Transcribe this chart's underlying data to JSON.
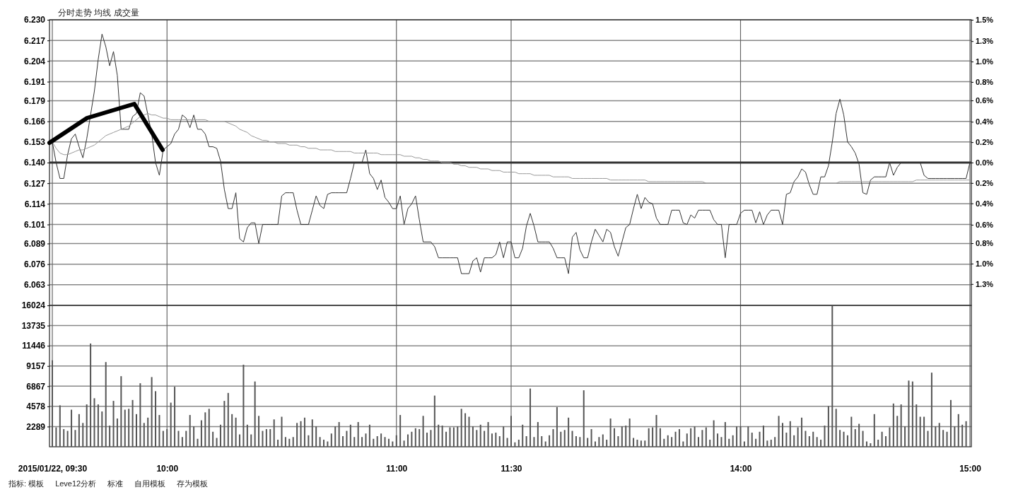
{
  "chart_data": [
    {
      "type": "line",
      "title": "分时走势 均线 成交量",
      "tick_labels": "y",
      "categories": [
        null,
        null,
        null,
        null,
        null,
        null,
        null,
        null,
        null,
        null,
        null,
        null,
        null,
        null,
        null,
        null,
        null,
        null,
        null,
        null,
        null,
        null,
        null,
        null,
        null,
        null,
        null,
        null,
        null,
        null,
        null,
        null,
        null,
        null,
        null,
        null,
        null,
        null,
        null,
        null,
        null,
        null,
        null,
        null,
        null,
        null,
        null,
        null,
        null,
        null,
        null,
        null,
        null,
        null,
        null,
        null,
        null,
        null,
        null,
        null,
        null,
        null,
        null,
        null,
        null,
        null,
        null,
        null,
        null,
        null,
        null,
        null,
        null,
        null,
        null,
        null,
        null,
        null,
        null,
        null,
        null,
        null,
        null,
        null,
        null,
        null,
        null,
        null,
        null,
        null,
        null,
        null,
        null,
        null,
        null,
        null,
        null,
        null,
        null,
        null,
        null,
        null,
        null,
        null,
        null,
        null,
        null,
        null,
        null,
        null,
        null,
        null,
        null,
        null,
        null,
        null,
        null,
        null,
        null,
        null,
        null,
        null,
        null,
        null,
        null,
        null,
        null,
        null,
        null,
        null,
        null,
        null,
        null,
        null,
        null,
        null,
        null,
        null,
        null,
        null,
        null,
        null,
        null,
        null,
        null,
        null,
        null,
        null,
        null,
        null,
        null,
        null,
        null,
        null,
        null,
        null,
        null,
        null,
        null,
        null,
        null,
        null,
        null,
        null,
        null,
        null,
        null,
        null,
        null,
        null,
        null,
        null,
        null,
        null,
        null,
        null,
        null,
        null,
        null,
        null,
        null,
        null,
        null,
        null,
        null,
        null,
        null,
        null,
        null,
        null,
        null,
        null,
        null,
        null,
        null,
        null,
        null,
        null,
        null,
        null,
        null,
        null,
        null,
        null,
        null,
        null,
        null,
        null,
        null,
        null,
        null,
        null,
        null,
        null,
        null,
        null,
        null,
        null,
        null,
        null,
        null,
        null,
        null,
        null,
        null,
        null,
        null,
        null,
        null,
        null,
        null,
        null,
        null,
        null,
        null,
        null,
        null,
        null,
        null,
        null,
        null
      ],
      "ylim": [
        6.05,
        6.23
      ],
      "yticks": [
        {
          "value": 6.23,
          "label": "6.230"
        },
        6.217,
        6.204,
        6.191,
        6.179,
        6.166,
        6.153,
        {
          "value": 6.14,
          "label": "6.140"
        },
        6.127,
        6.114,
        6.101,
        6.089,
        6.076,
        6.063
      ],
      "y2lim": [
        -1.47,
        1.47
      ],
      "y2ticks": [
        {
          "value": 1.47,
          "label": "1.5%"
        },
        {
          "value": 1.25,
          "label": "1.3%"
        },
        {
          "value": 1.04,
          "label": "1.0%"
        },
        {
          "value": 0.83,
          "label": "0.8%"
        },
        {
          "value": 0.64,
          "label": "0.6%"
        },
        {
          "value": 0.42,
          "label": "0.4%"
        },
        {
          "value": 0.21,
          "label": "0.2%"
        },
        {
          "value": 0,
          "label": "0.0%"
        },
        {
          "value": -0.21,
          "label": "0.2%"
        },
        {
          "value": -0.42,
          "label": "0.4%"
        },
        {
          "value": -0.64,
          "label": "0.6%"
        },
        {
          "value": -0.83,
          "label": "0.8%"
        },
        {
          "value": -1.04,
          "label": "1.0%"
        },
        {
          "value": -1.25,
          "label": "1.3%"
        }
      ],
      "grid": true,
      "ref_lines": [
        {
          "axis": "y",
          "value": 6.14,
          "color": "#333333"
        }
      ],
      "series": [
        {
          "color": "#333333",
          "values": [
            6.153,
            6.14,
            6.13,
            6.13,
            6.145,
            6.155,
            6.158,
            6.15,
            6.143,
            6.155,
            6.17,
            6.185,
            6.205,
            6.221,
            6.213,
            6.201,
            6.21,
            6.195,
            6.161,
            6.161,
            6.161,
            6.169,
            6.171,
            6.184,
            6.182,
            6.17,
            6.158,
            6.14,
            6.132,
            6.148,
            6.15,
            6.152,
            6.158,
            6.161,
            6.17,
            6.168,
            6.162,
            6.17,
            6.161,
            6.161,
            6.158,
            6.15,
            6.15,
            6.149,
            6.141,
            6.123,
            6.111,
            6.111,
            6.121,
            6.092,
            6.09,
            6.099,
            6.102,
            6.102,
            6.089,
            6.101,
            6.101,
            6.101,
            6.101,
            6.101,
            6.119,
            6.121,
            6.121,
            6.121,
            6.11,
            6.101,
            6.101,
            6.101,
            6.11,
            6.119,
            6.113,
            6.111,
            6.12,
            6.121,
            6.121,
            6.121,
            6.121,
            6.121,
            6.13,
            6.14,
            6.14,
            6.14,
            6.148,
            6.133,
            6.13,
            6.123,
            6.129,
            6.118,
            6.115,
            6.111,
            6.111,
            6.119,
            6.101,
            6.111,
            6.114,
            6.119,
            6.104,
            6.09,
            6.09,
            6.09,
            6.087,
            6.08,
            6.08,
            6.08,
            6.08,
            6.08,
            6.08,
            6.07,
            6.07,
            6.07,
            6.078,
            6.08,
            6.071,
            6.08,
            6.08,
            6.08,
            6.082,
            6.09,
            6.08,
            6.09,
            6.09,
            6.08,
            6.08,
            6.086,
            6.1,
            6.108,
            6.1,
            6.09,
            6.09,
            6.09,
            6.09,
            6.086,
            6.08,
            6.08,
            6.08,
            6.07,
            6.093,
            6.096,
            6.085,
            6.08,
            6.08,
            6.09,
            6.098,
            6.094,
            6.09,
            6.098,
            6.096,
            6.087,
            6.081,
            6.09,
            6.099,
            6.101,
            6.111,
            6.12,
            6.111,
            6.118,
            6.115,
            6.114,
            6.105,
            6.101,
            6.101,
            6.101,
            6.11,
            6.11,
            6.11,
            6.102,
            6.101,
            6.107,
            6.105,
            6.11,
            6.11,
            6.11,
            6.11,
            6.104,
            6.101,
            6.101,
            6.08,
            6.101,
            6.101,
            6.101,
            6.108,
            6.11,
            6.11,
            6.11,
            6.102,
            6.109,
            6.101,
            6.107,
            6.11,
            6.11,
            6.11,
            6.101,
            6.12,
            6.121,
            6.128,
            6.131,
            6.136,
            6.134,
            6.126,
            6.12,
            6.12,
            6.131,
            6.131,
            6.138,
            6.153,
            6.171,
            6.18,
            6.17,
            6.153,
            6.15,
            6.146,
            6.139,
            6.121,
            6.12,
            6.129,
            6.131,
            6.131,
            6.131,
            6.131,
            6.14,
            6.132,
            6.137,
            6.14,
            6.14,
            6.14,
            6.14,
            6.14,
            6.14,
            6.132,
            6.13,
            6.13,
            6.13,
            6.13,
            6.13,
            6.13,
            6.13,
            6.13,
            6.13,
            6.13,
            6.13,
            6.14
          ]
        },
        {
          "color": "#999999",
          "values": [
            6.153,
            6.149,
            6.146,
            6.145,
            6.145,
            6.146,
            6.147,
            6.148,
            6.148,
            6.149,
            6.15,
            6.151,
            6.153,
            6.155,
            6.157,
            6.158,
            6.159,
            6.16,
            6.161,
            6.162,
            6.163,
            6.165,
            6.167,
            6.169,
            6.17,
            6.171,
            6.17,
            6.17,
            6.169,
            6.168,
            6.168,
            6.167,
            6.167,
            6.167,
            6.167,
            6.167,
            6.167,
            6.167,
            6.167,
            6.167,
            6.167,
            6.166,
            6.166,
            6.166,
            6.166,
            6.166,
            6.165,
            6.164,
            6.163,
            6.161,
            6.16,
            6.159,
            6.157,
            6.156,
            6.155,
            6.154,
            6.154,
            6.153,
            6.153,
            6.152,
            6.152,
            6.152,
            6.151,
            6.151,
            6.151,
            6.15,
            6.15,
            6.149,
            6.149,
            6.149,
            6.148,
            6.148,
            6.148,
            6.148,
            6.147,
            6.147,
            6.147,
            6.147,
            6.147,
            6.146,
            6.146,
            6.146,
            6.146,
            6.146,
            6.146,
            6.146,
            6.145,
            6.145,
            6.145,
            6.145,
            6.145,
            6.145,
            6.144,
            6.144,
            6.144,
            6.143,
            6.143,
            6.142,
            6.142,
            6.141,
            6.141,
            6.141,
            6.14,
            6.14,
            6.14,
            6.139,
            6.139,
            6.138,
            6.138,
            6.137,
            6.137,
            6.137,
            6.136,
            6.136,
            6.136,
            6.135,
            6.135,
            6.135,
            6.134,
            6.134,
            6.134,
            6.134,
            6.133,
            6.133,
            6.133,
            6.133,
            6.132,
            6.132,
            6.132,
            6.132,
            6.132,
            6.131,
            6.131,
            6.131,
            6.131,
            6.131,
            6.13,
            6.13,
            6.13,
            6.13,
            6.13,
            6.13,
            6.13,
            6.13,
            6.13,
            6.13,
            6.129,
            6.129,
            6.129,
            6.129,
            6.129,
            6.129,
            6.129,
            6.129,
            6.129,
            6.129,
            6.128,
            6.128,
            6.128,
            6.128,
            6.128,
            6.128,
            6.128,
            6.128,
            6.128,
            6.128,
            6.128,
            6.128,
            6.128,
            6.128,
            6.128,
            6.127,
            6.127,
            6.127,
            6.127,
            6.127,
            6.127,
            6.127,
            6.127,
            6.127,
            6.127,
            6.127,
            6.127,
            6.127,
            6.127,
            6.127,
            6.127,
            6.127,
            6.127,
            6.127,
            6.127,
            6.127,
            6.127,
            6.127,
            6.127,
            6.127,
            6.127,
            6.127,
            6.127,
            6.127,
            6.127,
            6.127,
            6.127,
            6.127,
            6.127,
            6.127,
            6.128,
            6.128,
            6.128,
            6.128,
            6.128,
            6.128,
            6.128,
            6.128,
            6.128,
            6.128,
            6.128,
            6.128,
            6.128,
            6.128,
            6.128,
            6.128,
            6.128,
            6.128,
            6.128,
            6.128,
            6.129,
            6.129,
            6.129,
            6.129,
            6.129,
            6.129,
            6.129,
            6.129,
            6.129,
            6.129,
            6.129,
            6.129,
            6.129,
            6.129,
            6.129
          ]
        }
      ]
    },
    {
      "type": "bar",
      "color": "#555555",
      "categories": [
        "2015/01/22, 09:30",
        null,
        null,
        null,
        null,
        null,
        null,
        null,
        null,
        null,
        null,
        null,
        null,
        null,
        null,
        null,
        null,
        null,
        null,
        null,
        null,
        null,
        null,
        null,
        null,
        null,
        null,
        null,
        null,
        null,
        "10:00",
        null,
        null,
        null,
        null,
        null,
        null,
        null,
        null,
        null,
        null,
        null,
        null,
        null,
        null,
        null,
        null,
        null,
        null,
        null,
        null,
        null,
        null,
        null,
        null,
        null,
        null,
        null,
        null,
        null,
        null,
        null,
        null,
        null,
        null,
        null,
        null,
        null,
        null,
        null,
        null,
        null,
        null,
        null,
        null,
        null,
        null,
        null,
        null,
        null,
        null,
        null,
        null,
        null,
        null,
        null,
        null,
        null,
        null,
        null,
        "11:00",
        null,
        null,
        null,
        null,
        null,
        null,
        null,
        null,
        null,
        null,
        null,
        null,
        null,
        null,
        null,
        null,
        null,
        null,
        null,
        null,
        null,
        null,
        null,
        null,
        null,
        null,
        null,
        null,
        null,
        "11:30",
        null,
        null,
        null,
        null,
        null,
        null,
        null,
        null,
        null,
        null,
        null,
        null,
        null,
        null,
        null,
        null,
        null,
        null,
        null,
        null,
        null,
        null,
        null,
        null,
        null,
        null,
        null,
        null,
        null,
        null,
        null,
        null,
        null,
        null,
        null,
        null,
        null,
        null,
        null,
        null,
        null,
        null,
        null,
        null,
        null,
        null,
        null,
        null,
        null,
        null,
        null,
        null,
        null,
        null,
        null,
        null,
        null,
        null,
        null,
        "14:00",
        null,
        null,
        null,
        null,
        null,
        null,
        null,
        null,
        null,
        null,
        null,
        null,
        null,
        null,
        null,
        null,
        null,
        null,
        null,
        null,
        null,
        null,
        null,
        null,
        null,
        null,
        null,
        null,
        null,
        null,
        null,
        null,
        null,
        null,
        null,
        null,
        null,
        null,
        null,
        null,
        null,
        null,
        null,
        null,
        null,
        null,
        null,
        null,
        null,
        null,
        null,
        null,
        null,
        null,
        null,
        null,
        null,
        null,
        null,
        "15:00"
      ],
      "ylim": [
        0,
        16024
      ],
      "yticks": [
        2289,
        4578,
        6867,
        9157,
        11446,
        13735,
        16024
      ],
      "grid": true,
      "annotations": [
        "指标: 模板",
        "Leve12分析",
        "标准",
        "自用模板",
        "存为模板"
      ],
      "values": [
        9800,
        2200,
        4700,
        2000,
        1800,
        4200,
        1900,
        3700,
        2700,
        4800,
        11700,
        5500,
        4800,
        4000,
        9600,
        2400,
        5200,
        3200,
        8000,
        4200,
        4300,
        5300,
        3700,
        7200,
        2700,
        3300,
        7900,
        6300,
        3600,
        1800,
        2000,
        5000,
        6800,
        1800,
        1100,
        1800,
        3600,
        2300,
        900,
        3000,
        3900,
        4300,
        1700,
        1000,
        2500,
        5200,
        6100,
        3700,
        3300,
        1400,
        9300,
        2500,
        1400,
        7400,
        3500,
        1800,
        2000,
        2000,
        3100,
        800,
        3400,
        1100,
        900,
        1100,
        2700,
        2900,
        3300,
        1300,
        3100,
        2300,
        1100,
        800,
        600,
        1500,
        2300,
        2800,
        1200,
        1800,
        2500,
        1100,
        2800,
        1100,
        1500,
        2500,
        900,
        1200,
        1500,
        1100,
        900,
        600,
        1300,
        3600,
        700,
        1400,
        1700,
        2100,
        2000,
        3500,
        1600,
        1900,
        5800,
        2500,
        2400,
        1700,
        2200,
        2200,
        2300,
        4300,
        3800,
        3400,
        2300,
        1900,
        2500,
        1800,
        2800,
        1500,
        1600,
        1200,
        2300,
        1000,
        3500,
        500,
        800,
        2500,
        1200,
        6600,
        1100,
        2800,
        1200,
        600,
        1300,
        2000,
        4500,
        1700,
        1900,
        3300,
        1800,
        1200,
        1100,
        6400,
        1000,
        2000,
        600,
        1100,
        1400,
        800,
        3200,
        2100,
        1200,
        2300,
        2400,
        3200,
        1000,
        800,
        700,
        700,
        2100,
        2200,
        3600,
        2100,
        900,
        1300,
        1100,
        1700,
        2000,
        600,
        1500,
        2100,
        2300,
        1100,
        1900,
        2200,
        800,
        3000,
        1500,
        1100,
        2800,
        900,
        1300,
        2300,
        2300,
        600,
        2300,
        1600,
        900,
        1700,
        2400,
        700,
        800,
        1100,
        3500,
        2700,
        1600,
        2900,
        1300,
        2200,
        3300,
        1800,
        1200,
        1700,
        1100,
        800,
        2400,
        4600,
        16000,
        4300,
        1900,
        1700,
        1300,
        3400,
        2000,
        2600,
        1800,
        600,
        400,
        3700,
        800,
        1700,
        1200,
        2200,
        4900,
        3500,
        4800,
        2300,
        7500,
        7400,
        4800,
        3400,
        3400,
        1800,
        8400,
        2300,
        2700,
        1900,
        1700,
        5300,
        2300,
        3700,
        2500,
        2900,
        null
      ]
    }
  ]
}
